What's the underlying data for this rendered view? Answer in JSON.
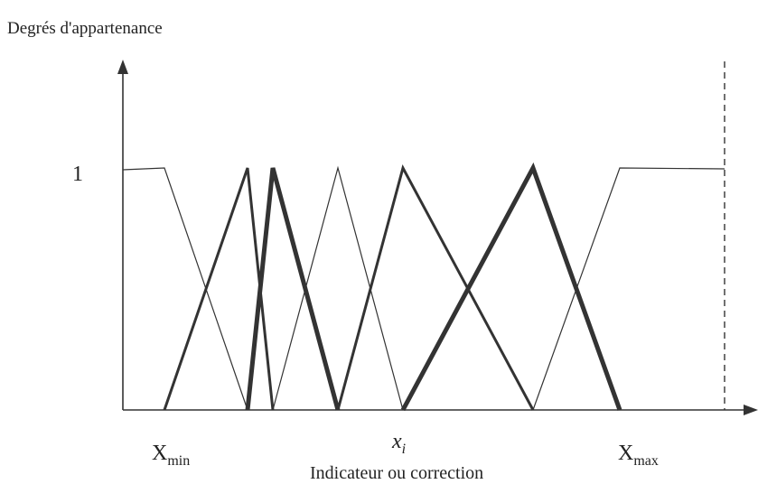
{
  "diagram": {
    "y_axis_label": "Degrés d'appartenance",
    "y_tick_one": "1",
    "x_axis_label": "Indicateur ou correction",
    "x_min": {
      "base": "X",
      "sub": "min"
    },
    "x_max": {
      "base": "X",
      "sub": "max"
    },
    "x_i": {
      "base": "x",
      "sub": "i"
    },
    "colors": {
      "line": "#333333",
      "text": "#222222"
    }
  }
}
